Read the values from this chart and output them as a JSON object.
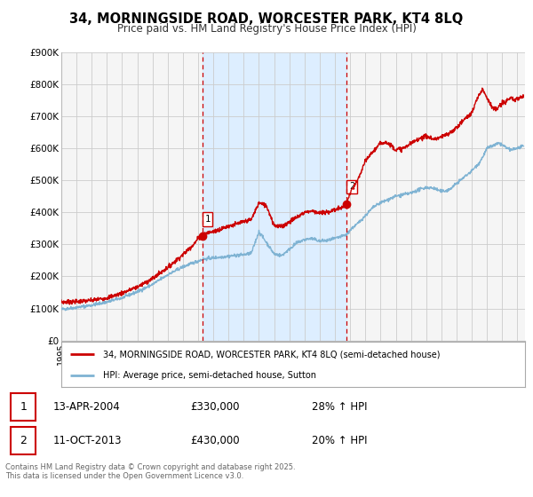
{
  "title_line1": "34, MORNINGSIDE ROAD, WORCESTER PARK, KT4 8LQ",
  "title_line2": "Price paid vs. HM Land Registry's House Price Index (HPI)",
  "ylim": [
    0,
    900000
  ],
  "yticks": [
    0,
    100000,
    200000,
    300000,
    400000,
    500000,
    600000,
    700000,
    800000,
    900000
  ],
  "ytick_labels": [
    "£0",
    "£100K",
    "£200K",
    "£300K",
    "£400K",
    "£500K",
    "£600K",
    "£700K",
    "£800K",
    "£900K"
  ],
  "red_color": "#cc0000",
  "blue_color": "#7fb3d3",
  "shade_color": "#ddeeff",
  "vline_color": "#cc0000",
  "bg_color": "#f5f5f5",
  "grid_color": "#cccccc",
  "legend1_label": "34, MORNINGSIDE ROAD, WORCESTER PARK, KT4 8LQ (semi-detached house)",
  "legend2_label": "HPI: Average price, semi-detached house, Sutton",
  "event1_date": "13-APR-2004",
  "event1_price": "£330,000",
  "event1_hpi": "28% ↑ HPI",
  "event1_x": 2004.28,
  "event2_date": "11-OCT-2013",
  "event2_price": "£430,000",
  "event2_hpi": "20% ↑ HPI",
  "event2_x": 2013.78,
  "footer_text": "Contains HM Land Registry data © Crown copyright and database right 2025.\nThis data is licensed under the Open Government Licence v3.0.",
  "xmin": 1995.0,
  "xmax": 2025.5
}
